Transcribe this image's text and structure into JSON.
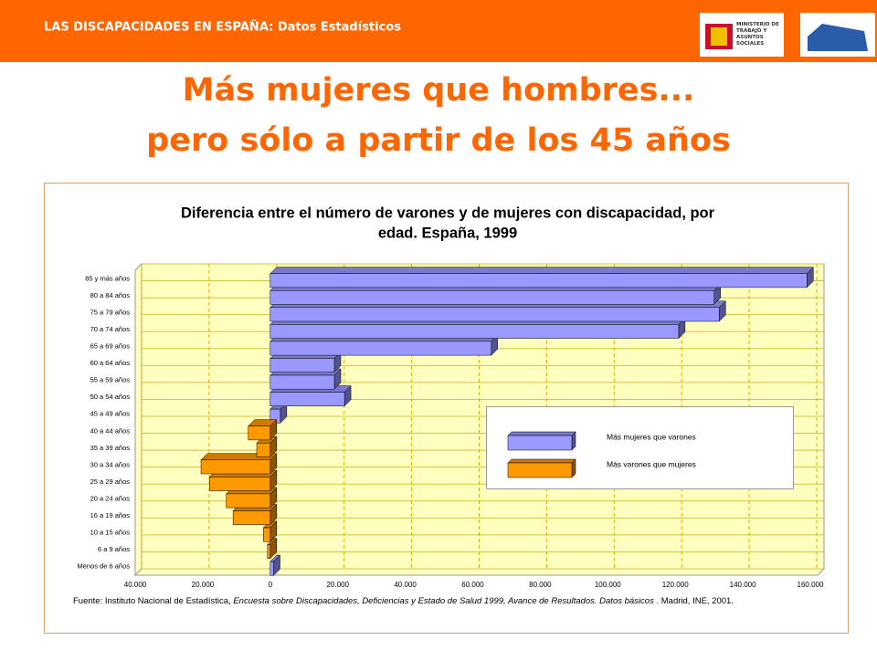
{
  "header": {
    "text": "LAS DISCAPACIDADES EN ESPAÑA: Datos Estadísticos",
    "logo_text": "MINISTERIO DE TRABAJO Y ASUNTOS SOCIALES"
  },
  "headline": [
    "Más mujeres que hombres...",
    "pero sólo a partir de los 45 años"
  ],
  "chart_data": {
    "type": "hbar",
    "title": [
      "Diferencia entre el número de varones y de mujeres con discapacidad, por",
      "edad. España, 1999"
    ],
    "categories": [
      "Menos de 6 años",
      "6 a 9 años",
      "10 a 15 años",
      "16 a 19 años",
      "20 a 24 años",
      "25 a 29 años",
      "30 a 34 años",
      "35 a 39 años",
      "40 a 44 años",
      "45 a 49 años",
      "50 a 54 años",
      "55 a 59 años",
      "60 a 64 años",
      "65 a 69 años",
      "70 a 74 años",
      "75 a 79 años",
      "80 a 84 años",
      "85 y más años"
    ],
    "series": [
      {
        "name": "Más mujeres que varones",
        "color": "#9999ff",
        "values": [
          1000,
          null,
          null,
          null,
          null,
          null,
          null,
          null,
          null,
          3000,
          22000,
          19000,
          19000,
          65500,
          121000,
          133000,
          131500,
          159000
        ]
      },
      {
        "name": "Más varones que mujeres",
        "color": "#ff9900",
        "values": [
          null,
          -800,
          -2000,
          -11000,
          -13000,
          -18000,
          -20500,
          -4000,
          -6500,
          null,
          null,
          null,
          null,
          null,
          null,
          null,
          null,
          null
        ]
      }
    ],
    "xlim": [
      -40000,
      160000
    ],
    "xticks": [
      {
        "value": -40000,
        "label": "40.000"
      },
      {
        "value": -20000,
        "label": "20.000"
      },
      0,
      {
        "value": 20000,
        "label": "20.000"
      },
      {
        "value": 40000,
        "label": "40.000"
      },
      {
        "value": 60000,
        "label": "60.000"
      },
      {
        "value": 80000,
        "label": "80.000"
      },
      {
        "value": 100000,
        "label": "100.000"
      },
      {
        "value": 120000,
        "label": "120.000"
      },
      {
        "value": 140000,
        "label": "140.000"
      },
      {
        "value": 160000,
        "label": "160.000"
      }
    ],
    "grid": true,
    "source": [
      "Fuente: Instituto Nacional de Estadística, ",
      "Encuesta sobre Discapacidades, Deficiencias y Estado de Salud 1999, Avance de Resultados. Datos básicos",
      " . Madrid, INE, 2001."
    ]
  }
}
